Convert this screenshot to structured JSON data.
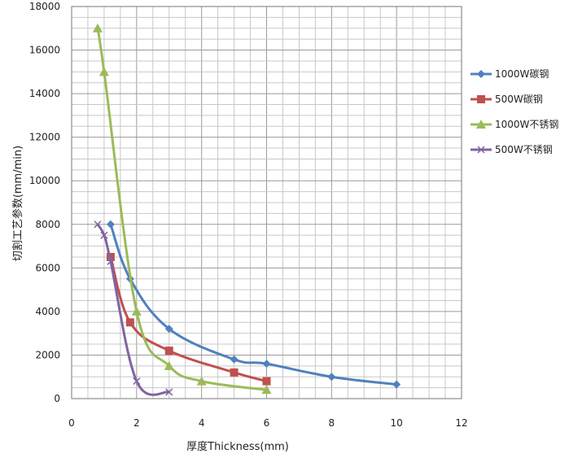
{
  "chart_data": {
    "type": "line",
    "title": "",
    "xlabel": "厚度Thickness(mm)",
    "ylabel": "切割工艺参数(mm/min)",
    "xlim": [
      0,
      12
    ],
    "ylim": [
      0,
      18000
    ],
    "x_ticks": [
      0,
      2,
      4,
      6,
      8,
      10,
      12
    ],
    "y_ticks": [
      0,
      2000,
      4000,
      6000,
      8000,
      10000,
      12000,
      14000,
      16000,
      18000
    ],
    "grid": true,
    "legend_position": "right",
    "series": [
      {
        "name": "1000W碳钢",
        "color": "#4f81bd",
        "marker": "diamond",
        "x": [
          1.2,
          1.8,
          3,
          5,
          6,
          8,
          10
        ],
        "y": [
          8000,
          5500,
          3200,
          1800,
          1600,
          1000,
          650
        ]
      },
      {
        "name": "500W碳钢",
        "color": "#c0504d",
        "marker": "square",
        "x": [
          1.2,
          1.8,
          3,
          5,
          6
        ],
        "y": [
          6500,
          3500,
          2200,
          1200,
          800
        ]
      },
      {
        "name": "1000W不锈钢",
        "color": "#9bbb59",
        "marker": "triangle",
        "x": [
          0.8,
          1,
          2,
          3,
          4,
          6
        ],
        "y": [
          17000,
          15000,
          4000,
          1500,
          800,
          400
        ]
      },
      {
        "name": "500W不锈钢",
        "color": "#8064a2",
        "marker": "x",
        "x": [
          0.8,
          1,
          1.2,
          2,
          3
        ],
        "y": [
          8000,
          7500,
          6300,
          800,
          300
        ]
      }
    ]
  }
}
